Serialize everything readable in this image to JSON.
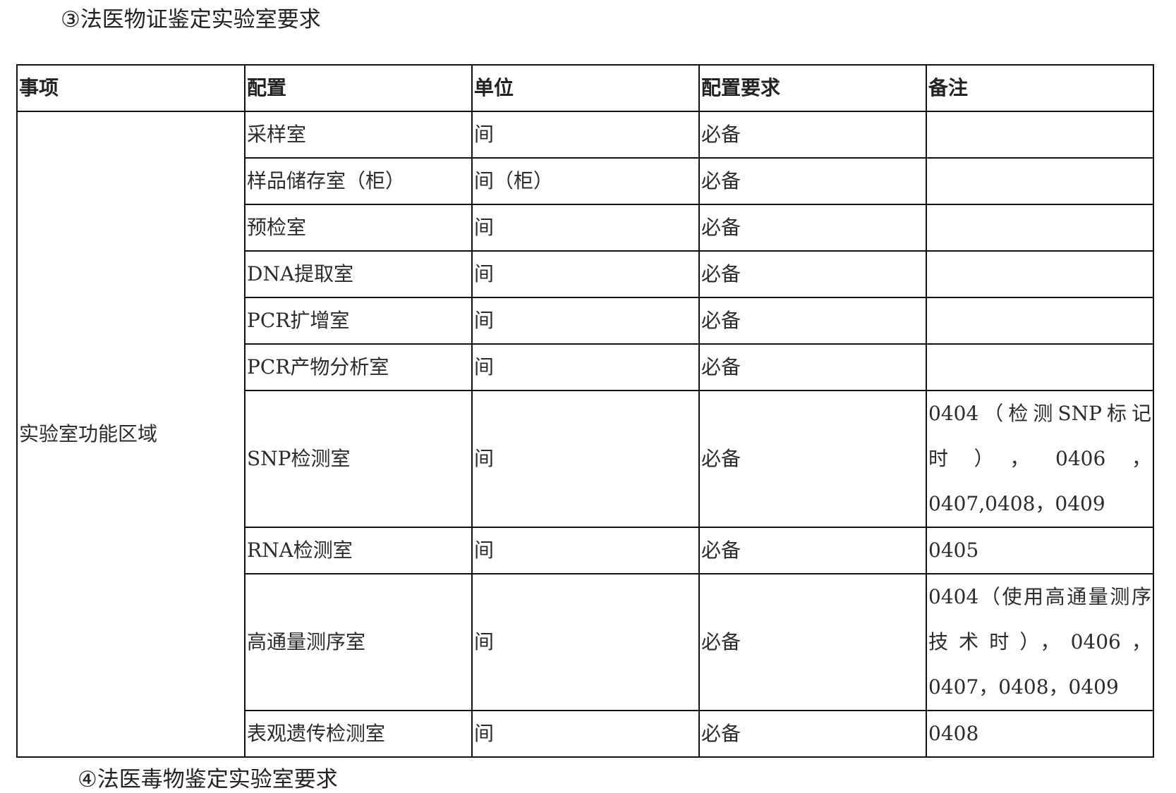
{
  "title": "③法医物证鉴定实验室要求",
  "next_heading": "④法医毒物鉴定实验室要求",
  "table": {
    "headers": [
      "事项",
      "配置",
      "单位",
      "配置要求",
      "备注"
    ],
    "category": "实验室功能区域",
    "rows": [
      {
        "config": "采样室",
        "unit": "间",
        "req": "必备",
        "note": ""
      },
      {
        "config": "样品储存室（柜）",
        "unit": "间（柜）",
        "req": "必备",
        "note": ""
      },
      {
        "config": "预检室",
        "unit": "间",
        "req": "必备",
        "note": ""
      },
      {
        "config": "DNA提取室",
        "unit": "间",
        "req": "必备",
        "note": ""
      },
      {
        "config": "PCR扩增室",
        "unit": "间",
        "req": "必备",
        "note": ""
      },
      {
        "config": "PCR产物分析室",
        "unit": "间",
        "req": "必备",
        "note": ""
      },
      {
        "config": "SNP检测室",
        "unit": "间",
        "req": "必备",
        "note": "0404（检测SNP标记时），0406，0407,0408，0409"
      },
      {
        "config": "RNA检测室",
        "unit": "间",
        "req": "必备",
        "note": "0405"
      },
      {
        "config": "高通量测序室",
        "unit": "间",
        "req": "必备",
        "note": "0404（使用高通量测序技术时），0406，0407，0408，0409"
      },
      {
        "config": "表观遗传检测室",
        "unit": "间",
        "req": "必备",
        "note": "0408"
      }
    ]
  }
}
